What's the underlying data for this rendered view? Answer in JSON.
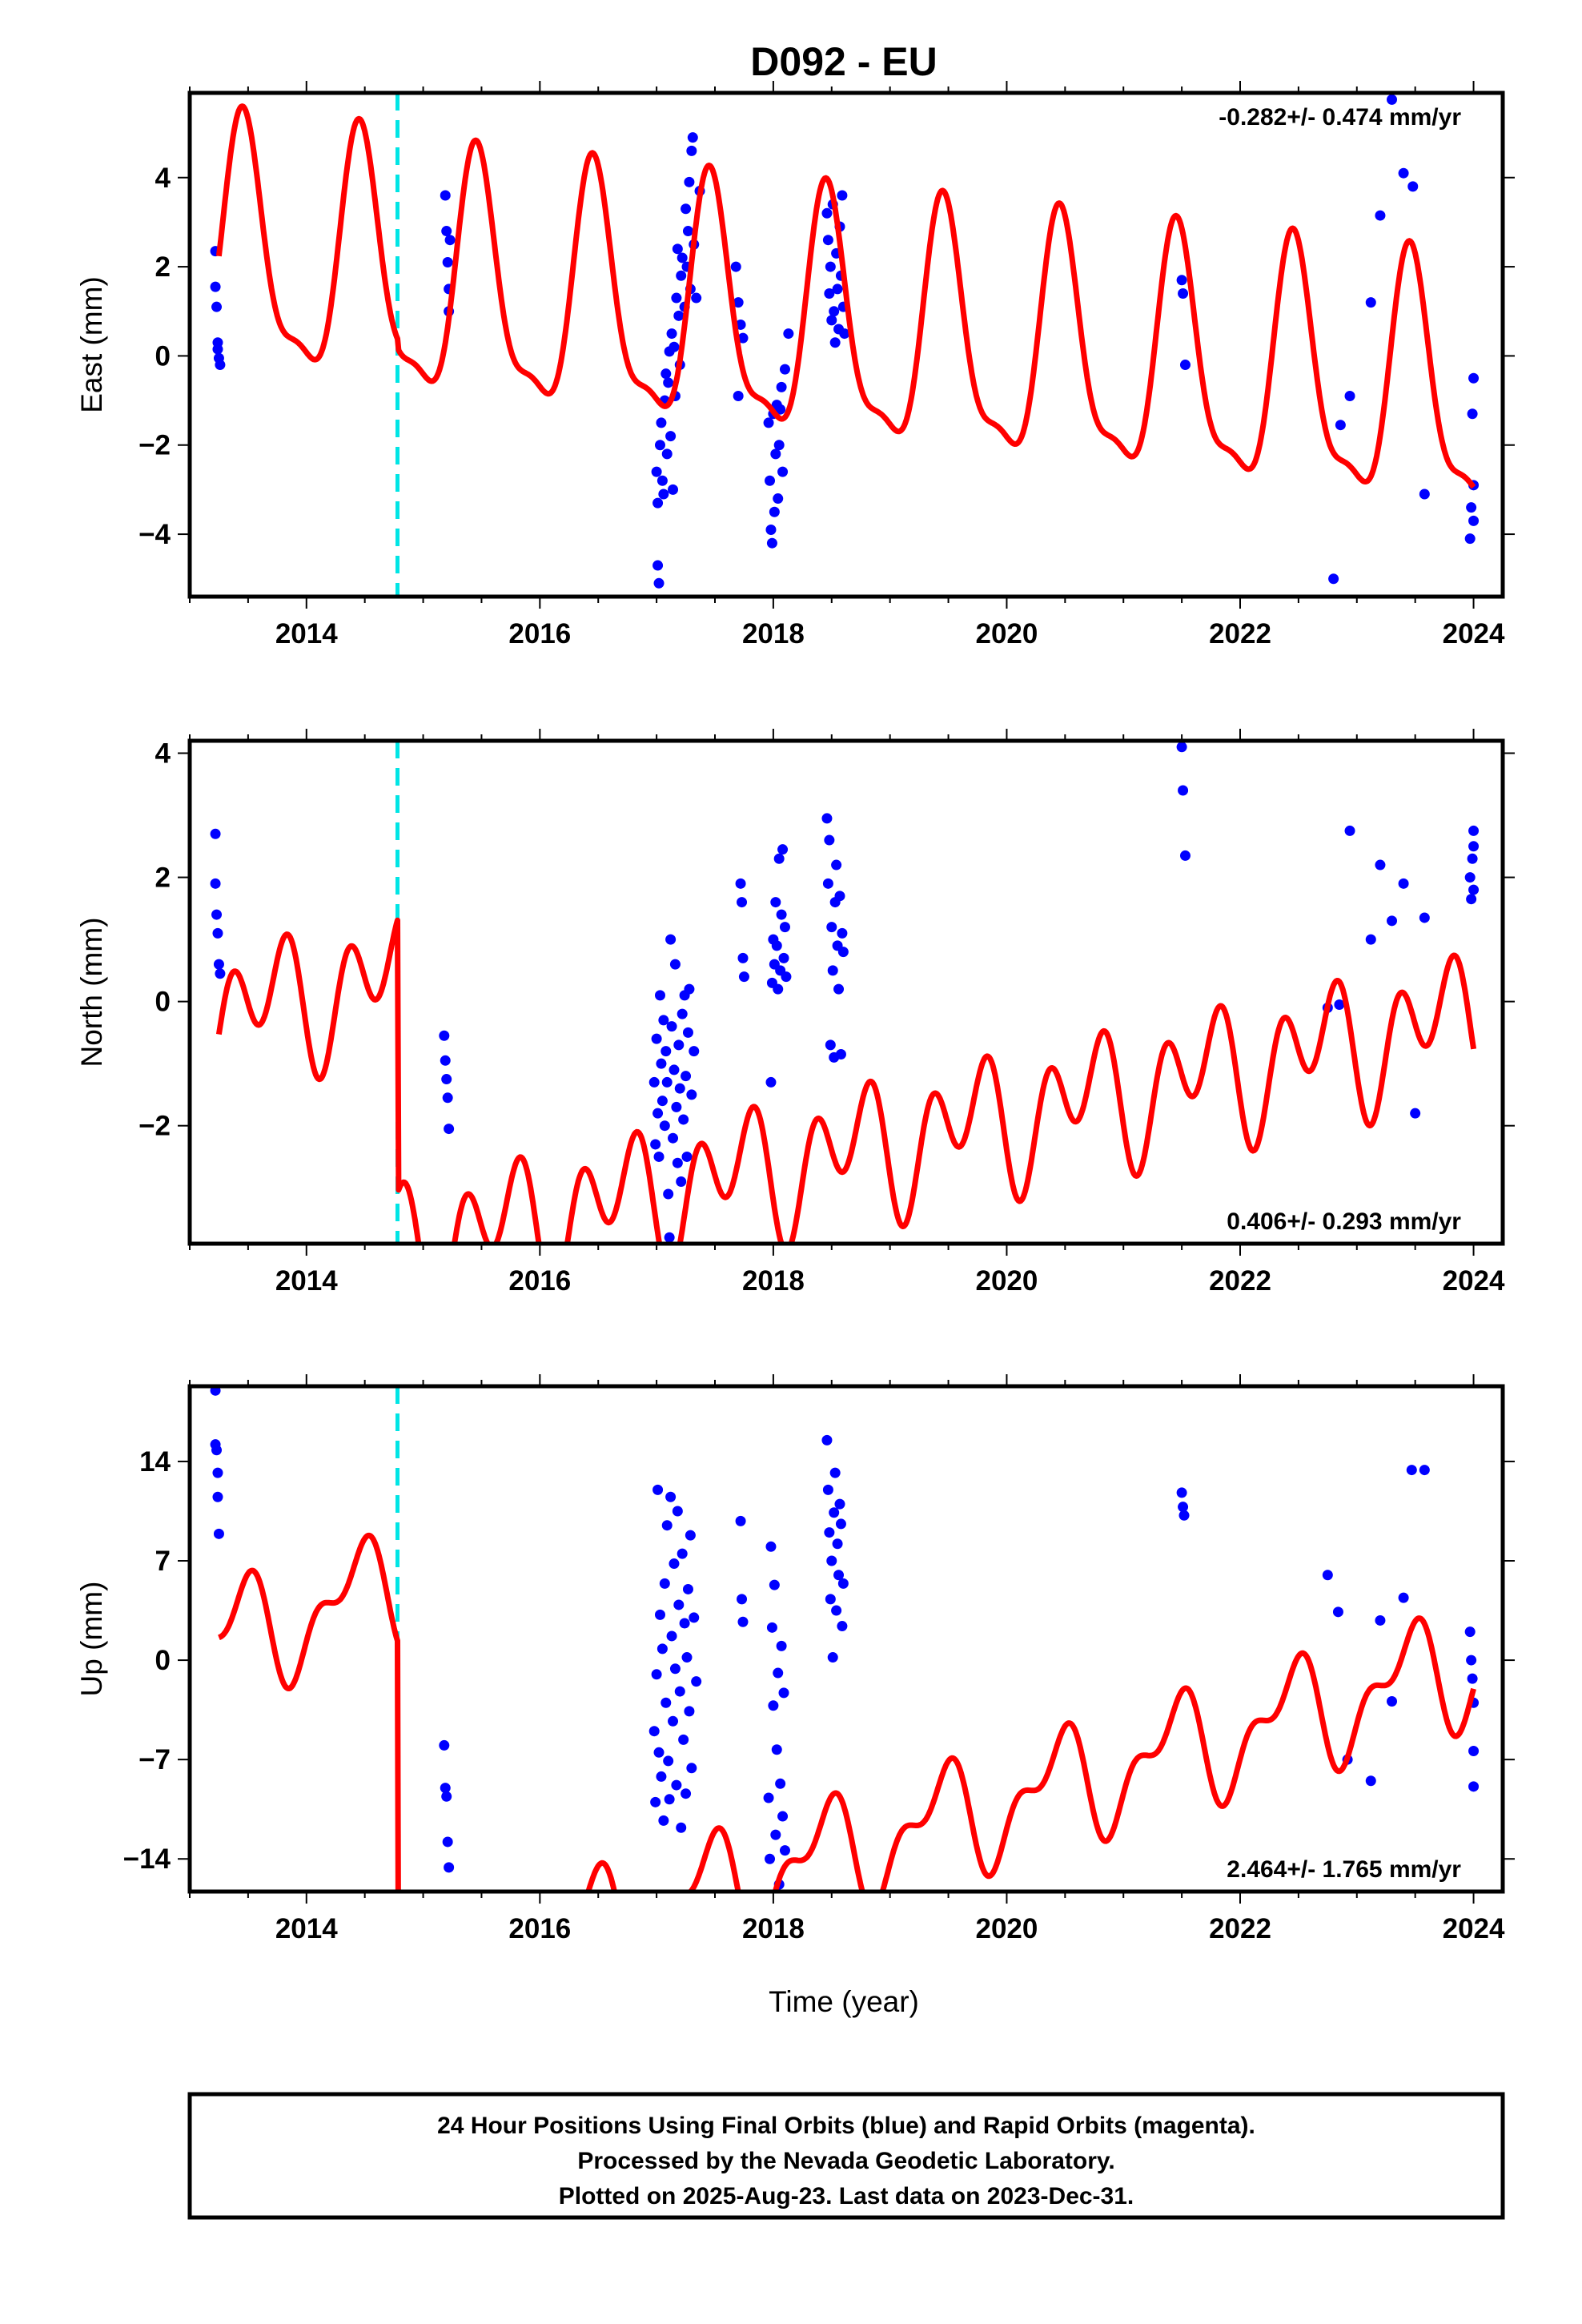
{
  "title": "D092 - EU",
  "xlabel": "Time (year)",
  "footer": [
    "24 Hour Positions Using Final Orbits (blue) and Rapid Orbits (magenta).",
    "Processed by the Nevada Geodetic Laboratory.",
    "Plotted on 2025-Aug-23. Last data on 2023-Dec-31."
  ],
  "colors": {
    "data": "#0000ff",
    "model": "#ff0000",
    "break": "#00e5e5",
    "frame": "#000000"
  },
  "chart_data": [
    {
      "type": "scatter",
      "ylabel": "East (mm)",
      "rate_label": "-0.282+/- 0.474 mm/yr",
      "xlim": [
        2013.0,
        2024.25
      ],
      "ylim": [
        -5.4,
        5.9
      ],
      "yticks": [
        4,
        2,
        0,
        -2,
        -4
      ],
      "ytick_labels": [
        "4",
        "2",
        "0",
        "−2",
        "−4"
      ],
      "xticks": [
        2014,
        2016,
        2018,
        2020,
        2022,
        2024
      ],
      "xtick_labels": [
        "2014",
        "2016",
        "2018",
        "2020",
        "2022",
        "2024"
      ],
      "break_epoch": 2014.78,
      "model": {
        "t0": 2013.25,
        "t1": 2024.0,
        "intercept": 0.9,
        "rate": -0.282,
        "offset": -0.2,
        "annual_sin": 0.6,
        "annual_cos": -2.55,
        "semi_sin": -0.55,
        "semi_cos": 0.6
      },
      "points": [
        [
          2013.22,
          2.35
        ],
        [
          2013.22,
          1.55
        ],
        [
          2013.23,
          1.1
        ],
        [
          2013.24,
          0.3
        ],
        [
          2013.24,
          0.15
        ],
        [
          2013.25,
          -0.05
        ],
        [
          2013.26,
          -0.2
        ],
        [
          2015.19,
          3.6
        ],
        [
          2015.2,
          2.8
        ],
        [
          2015.21,
          2.1
        ],
        [
          2015.22,
          1.5
        ],
        [
          2015.22,
          1.0
        ],
        [
          2015.23,
          2.6
        ],
        [
          2017.0,
          -2.6
        ],
        [
          2017.01,
          -3.3
        ],
        [
          2017.01,
          -4.7
        ],
        [
          2017.02,
          -5.1
        ],
        [
          2017.03,
          -2.0
        ],
        [
          2017.04,
          -1.5
        ],
        [
          2017.05,
          -2.8
        ],
        [
          2017.06,
          -3.1
        ],
        [
          2017.07,
          -1.0
        ],
        [
          2017.08,
          -0.4
        ],
        [
          2017.09,
          -2.2
        ],
        [
          2017.1,
          -0.6
        ],
        [
          2017.11,
          0.1
        ],
        [
          2017.12,
          -1.8
        ],
        [
          2017.13,
          0.5
        ],
        [
          2017.14,
          -3.0
        ],
        [
          2017.15,
          0.2
        ],
        [
          2017.16,
          -0.9
        ],
        [
          2017.17,
          1.3
        ],
        [
          2017.18,
          2.4
        ],
        [
          2017.19,
          0.9
        ],
        [
          2017.2,
          -0.2
        ],
        [
          2017.21,
          1.8
        ],
        [
          2017.22,
          2.2
        ],
        [
          2017.24,
          1.1
        ],
        [
          2017.25,
          3.3
        ],
        [
          2017.26,
          2.0
        ],
        [
          2017.27,
          2.8
        ],
        [
          2017.28,
          3.9
        ],
        [
          2017.29,
          1.5
        ],
        [
          2017.3,
          4.6
        ],
        [
          2017.31,
          4.9
        ],
        [
          2017.32,
          2.5
        ],
        [
          2017.34,
          1.3
        ],
        [
          2017.37,
          3.7
        ],
        [
          2017.68,
          2.0
        ],
        [
          2017.7,
          1.2
        ],
        [
          2017.72,
          0.7
        ],
        [
          2017.74,
          0.4
        ],
        [
          2017.7,
          -0.9
        ],
        [
          2017.96,
          -1.5
        ],
        [
          2017.97,
          -2.8
        ],
        [
          2017.98,
          -3.9
        ],
        [
          2017.99,
          -4.2
        ],
        [
          2018.0,
          -1.3
        ],
        [
          2018.01,
          -3.5
        ],
        [
          2018.02,
          -2.2
        ],
        [
          2018.03,
          -1.1
        ],
        [
          2018.04,
          -3.2
        ],
        [
          2018.05,
          -2.0
        ],
        [
          2018.06,
          -1.2
        ],
        [
          2018.07,
          -0.7
        ],
        [
          2018.08,
          -2.6
        ],
        [
          2018.1,
          -0.3
        ],
        [
          2018.13,
          0.5
        ],
        [
          2018.46,
          3.2
        ],
        [
          2018.47,
          2.6
        ],
        [
          2018.48,
          1.4
        ],
        [
          2018.49,
          2.0
        ],
        [
          2018.5,
          0.8
        ],
        [
          2018.51,
          3.4
        ],
        [
          2018.52,
          1.0
        ],
        [
          2018.53,
          0.3
        ],
        [
          2018.54,
          2.3
        ],
        [
          2018.55,
          1.5
        ],
        [
          2018.56,
          0.6
        ],
        [
          2018.57,
          2.9
        ],
        [
          2018.58,
          1.8
        ],
        [
          2018.59,
          3.6
        ],
        [
          2018.6,
          1.1
        ],
        [
          2018.61,
          0.5
        ],
        [
          2021.5,
          1.7
        ],
        [
          2021.51,
          1.4
        ],
        [
          2021.53,
          -0.2
        ],
        [
          2022.8,
          -5.0
        ],
        [
          2022.86,
          -1.55
        ],
        [
          2022.94,
          -0.9
        ],
        [
          2023.12,
          1.2
        ],
        [
          2023.2,
          3.15
        ],
        [
          2023.3,
          5.75
        ],
        [
          2023.4,
          4.1
        ],
        [
          2023.48,
          3.8
        ],
        [
          2023.58,
          -3.1
        ],
        [
          2023.97,
          -4.1
        ],
        [
          2023.98,
          -3.4
        ],
        [
          2023.99,
          -1.3
        ],
        [
          2024.0,
          -0.5
        ],
        [
          2024.0,
          -3.7
        ],
        [
          2024.0,
          -2.9
        ]
      ]
    },
    {
      "type": "scatter",
      "ylabel": "North (mm)",
      "rate_label": "0.406+/- 0.293 mm/yr",
      "xlim": [
        2013.0,
        2024.25
      ],
      "ylim": [
        -3.9,
        4.2
      ],
      "yticks": [
        4,
        2,
        0,
        -2
      ],
      "ytick_labels": [
        "4",
        "2",
        "0",
        "−2"
      ],
      "xticks": [
        2014,
        2016,
        2018,
        2020,
        2022,
        2024
      ],
      "xtick_labels": [
        "2014",
        "2016",
        "2018",
        "2020",
        "2022",
        "2024"
      ],
      "break_epoch": 2014.78,
      "model": {
        "t0": 2013.25,
        "t1": 2024.0,
        "intercept": 1.7,
        "rate": 0.406,
        "offset": -4.4,
        "annual_sin": -0.5,
        "annual_cos": -0.3,
        "semi_sin": -0.8,
        "semi_cos": -0.2
      },
      "points": [
        [
          2013.22,
          2.7
        ],
        [
          2013.22,
          1.9
        ],
        [
          2013.23,
          1.4
        ],
        [
          2013.24,
          1.1
        ],
        [
          2013.25,
          0.6
        ],
        [
          2013.26,
          0.45
        ],
        [
          2015.18,
          -0.55
        ],
        [
          2015.19,
          -0.95
        ],
        [
          2015.2,
          -1.25
        ],
        [
          2015.21,
          -1.55
        ],
        [
          2015.22,
          -2.05
        ],
        [
          2016.98,
          -1.3
        ],
        [
          2016.99,
          -2.3
        ],
        [
          2017.0,
          -0.6
        ],
        [
          2017.01,
          -1.8
        ],
        [
          2017.02,
          -2.5
        ],
        [
          2017.03,
          0.1
        ],
        [
          2017.04,
          -1.0
        ],
        [
          2017.05,
          -1.6
        ],
        [
          2017.06,
          -0.3
        ],
        [
          2017.07,
          -2.0
        ],
        [
          2017.08,
          -0.8
        ],
        [
          2017.09,
          -1.3
        ],
        [
          2017.1,
          -3.1
        ],
        [
          2017.11,
          -3.8
        ],
        [
          2017.12,
          1.0
        ],
        [
          2017.13,
          -0.4
        ],
        [
          2017.14,
          -2.2
        ],
        [
          2017.15,
          -1.1
        ],
        [
          2017.16,
          0.6
        ],
        [
          2017.17,
          -1.7
        ],
        [
          2017.18,
          -2.6
        ],
        [
          2017.19,
          -0.7
        ],
        [
          2017.2,
          -1.4
        ],
        [
          2017.21,
          -2.9
        ],
        [
          2017.22,
          -0.2
        ],
        [
          2017.23,
          -1.9
        ],
        [
          2017.24,
          0.1
        ],
        [
          2017.25,
          -1.2
        ],
        [
          2017.26,
          -2.5
        ],
        [
          2017.27,
          -0.5
        ],
        [
          2017.28,
          0.2
        ],
        [
          2017.3,
          -1.5
        ],
        [
          2017.32,
          -0.8
        ],
        [
          2017.72,
          1.9
        ],
        [
          2017.73,
          1.6
        ],
        [
          2017.74,
          0.7
        ],
        [
          2017.75,
          0.4
        ],
        [
          2017.98,
          -1.3
        ],
        [
          2017.99,
          0.3
        ],
        [
          2018.0,
          1.0
        ],
        [
          2018.01,
          0.6
        ],
        [
          2018.02,
          1.6
        ],
        [
          2018.03,
          0.9
        ],
        [
          2018.04,
          0.2
        ],
        [
          2018.05,
          2.3
        ],
        [
          2018.06,
          0.5
        ],
        [
          2018.07,
          1.4
        ],
        [
          2018.08,
          2.45
        ],
        [
          2018.09,
          0.7
        ],
        [
          2018.1,
          1.2
        ],
        [
          2018.11,
          0.4
        ],
        [
          2018.46,
          2.95
        ],
        [
          2018.47,
          1.9
        ],
        [
          2018.48,
          2.6
        ],
        [
          2018.49,
          -0.7
        ],
        [
          2018.5,
          1.2
        ],
        [
          2018.51,
          0.5
        ],
        [
          2018.52,
          -0.9
        ],
        [
          2018.53,
          1.6
        ],
        [
          2018.54,
          2.2
        ],
        [
          2018.55,
          0.9
        ],
        [
          2018.56,
          0.2
        ],
        [
          2018.57,
          1.7
        ],
        [
          2018.58,
          -0.85
        ],
        [
          2018.59,
          1.1
        ],
        [
          2018.6,
          0.8
        ],
        [
          2021.5,
          4.1
        ],
        [
          2021.51,
          3.4
        ],
        [
          2021.53,
          2.35
        ],
        [
          2022.75,
          -0.1
        ],
        [
          2022.85,
          -0.05
        ],
        [
          2022.94,
          2.75
        ],
        [
          2023.12,
          1.0
        ],
        [
          2023.2,
          2.2
        ],
        [
          2023.3,
          1.3
        ],
        [
          2023.4,
          1.9
        ],
        [
          2023.5,
          -1.8
        ],
        [
          2023.58,
          1.35
        ],
        [
          2023.97,
          2.0
        ],
        [
          2023.98,
          1.65
        ],
        [
          2023.99,
          2.3
        ],
        [
          2024.0,
          2.75
        ],
        [
          2024.0,
          2.5
        ],
        [
          2024.0,
          1.8
        ]
      ]
    },
    {
      "type": "scatter",
      "ylabel": "Up (mm)",
      "rate_label": "2.464+/- 1.765 mm/yr",
      "xlim": [
        2013.0,
        2024.25
      ],
      "ylim": [
        -16.3,
        19.3
      ],
      "yticks": [
        14,
        7,
        0,
        -7,
        -14
      ],
      "ytick_labels": [
        "14",
        "7",
        "0",
        "−7",
        "−14"
      ],
      "xticks": [
        2014,
        2016,
        2018,
        2020,
        2022,
        2024
      ],
      "xtick_labels": [
        "2014",
        "2016",
        "2018",
        "2020",
        "2022",
        "2024"
      ],
      "break_epoch": 2014.78,
      "model": {
        "t0": 2013.25,
        "t1": 2024.0,
        "intercept": 13.0,
        "rate": 2.464,
        "offset": -28.0,
        "annual_sin": 1.5,
        "annual_cos": -3.0,
        "semi_sin": 1.5,
        "semi_cos": 1.2
      },
      "points": [
        [
          2013.22,
          19.0
        ],
        [
          2013.22,
          15.2
        ],
        [
          2013.23,
          14.8
        ],
        [
          2013.24,
          13.2
        ],
        [
          2013.24,
          11.5
        ],
        [
          2013.25,
          8.9
        ],
        [
          2015.18,
          -6.0
        ],
        [
          2015.19,
          -9.0
        ],
        [
          2015.2,
          -9.6
        ],
        [
          2015.21,
          -12.8
        ],
        [
          2015.22,
          -14.6
        ],
        [
          2016.98,
          -5.0
        ],
        [
          2016.99,
          -10.0
        ],
        [
          2017.0,
          -1.0
        ],
        [
          2017.01,
          12.0
        ],
        [
          2017.02,
          -6.5
        ],
        [
          2017.03,
          3.2
        ],
        [
          2017.04,
          -8.2
        ],
        [
          2017.05,
          0.8
        ],
        [
          2017.06,
          -11.3
        ],
        [
          2017.07,
          5.4
        ],
        [
          2017.08,
          -3.0
        ],
        [
          2017.09,
          9.5
        ],
        [
          2017.1,
          -7.1
        ],
        [
          2017.11,
          -9.8
        ],
        [
          2017.12,
          11.5
        ],
        [
          2017.13,
          1.7
        ],
        [
          2017.14,
          -4.3
        ],
        [
          2017.15,
          6.8
        ],
        [
          2017.16,
          -0.6
        ],
        [
          2017.17,
          -8.8
        ],
        [
          2017.18,
          10.5
        ],
        [
          2017.19,
          3.9
        ],
        [
          2017.2,
          -2.2
        ],
        [
          2017.21,
          -11.8
        ],
        [
          2017.22,
          7.5
        ],
        [
          2017.23,
          -5.6
        ],
        [
          2017.24,
          2.6
        ],
        [
          2017.25,
          -9.4
        ],
        [
          2017.26,
          0.2
        ],
        [
          2017.27,
          5.0
        ],
        [
          2017.28,
          -3.6
        ],
        [
          2017.29,
          8.8
        ],
        [
          2017.3,
          -7.6
        ],
        [
          2017.32,
          3.0
        ],
        [
          2017.34,
          -1.5
        ],
        [
          2017.72,
          9.8
        ],
        [
          2017.73,
          4.3
        ],
        [
          2017.74,
          2.7
        ],
        [
          2017.96,
          -9.7
        ],
        [
          2017.97,
          -14.0
        ],
        [
          2017.98,
          8.0
        ],
        [
          2017.99,
          2.3
        ],
        [
          2018.0,
          -3.2
        ],
        [
          2018.01,
          5.3
        ],
        [
          2018.02,
          -12.3
        ],
        [
          2018.03,
          -6.3
        ],
        [
          2018.04,
          -0.9
        ],
        [
          2018.05,
          -15.8
        ],
        [
          2018.06,
          -8.7
        ],
        [
          2018.07,
          1.0
        ],
        [
          2018.08,
          -11.0
        ],
        [
          2018.09,
          -2.3
        ],
        [
          2018.1,
          -13.4
        ],
        [
          2018.46,
          15.5
        ],
        [
          2018.47,
          12.0
        ],
        [
          2018.48,
          9.0
        ],
        [
          2018.49,
          4.3
        ],
        [
          2018.5,
          7.0
        ],
        [
          2018.51,
          0.2
        ],
        [
          2018.52,
          10.4
        ],
        [
          2018.53,
          13.2
        ],
        [
          2018.54,
          3.5
        ],
        [
          2018.55,
          8.2
        ],
        [
          2018.56,
          6.0
        ],
        [
          2018.57,
          11.0
        ],
        [
          2018.58,
          9.6
        ],
        [
          2018.59,
          2.4
        ],
        [
          2018.6,
          5.4
        ],
        [
          2021.5,
          11.8
        ],
        [
          2021.51,
          10.8
        ],
        [
          2021.52,
          10.2
        ],
        [
          2022.75,
          6.0
        ],
        [
          2022.84,
          3.4
        ],
        [
          2022.92,
          -7.0
        ],
        [
          2023.12,
          -8.5
        ],
        [
          2023.2,
          2.8
        ],
        [
          2023.3,
          -2.9
        ],
        [
          2023.4,
          4.4
        ],
        [
          2023.47,
          13.4
        ],
        [
          2023.58,
          13.4
        ],
        [
          2023.97,
          2.0
        ],
        [
          2023.98,
          0.0
        ],
        [
          2023.99,
          -1.3
        ],
        [
          2024.0,
          -3.0
        ],
        [
          2024.0,
          -6.4
        ],
        [
          2024.0,
          -8.9
        ]
      ]
    }
  ]
}
